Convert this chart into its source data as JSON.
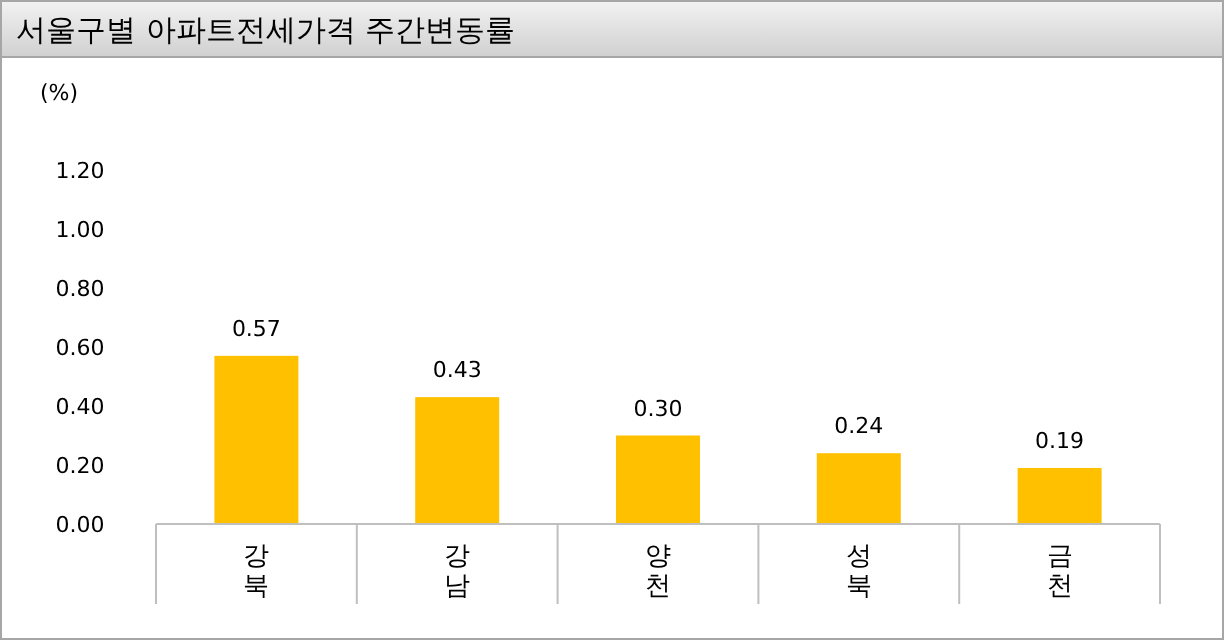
{
  "chart_data": {
    "type": "bar",
    "title": "서울구별 아파트전세가격 주간변동률",
    "ylabel": "(%)",
    "categories": [
      "강북",
      "강남",
      "양천",
      "성북",
      "금천"
    ],
    "values": [
      0.57,
      0.43,
      0.3,
      0.24,
      0.19
    ],
    "value_labels": [
      "0.57",
      "0.43",
      "0.30",
      "0.24",
      "0.19"
    ],
    "color": "#ffc000",
    "ylim": [
      0,
      1.2
    ],
    "yticks": [
      {
        "value": 0,
        "label": "0.00"
      },
      {
        "value": 0.2,
        "label": "0.20"
      },
      {
        "value": 0.4,
        "label": "0.40"
      },
      {
        "value": 0.6,
        "label": "0.60"
      },
      {
        "value": 0.8,
        "label": "0.80"
      },
      {
        "value": 1,
        "label": "1.00"
      },
      {
        "value": 1.2,
        "label": "1.20"
      }
    ]
  }
}
